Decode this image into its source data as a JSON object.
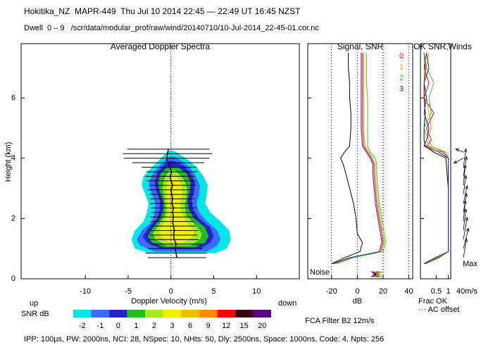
{
  "header": {
    "station": "Hokitika_NZ  MAPR-449  Thu Jul 10 2014 22:45 — 22:49 UT 16:45 NZST",
    "file": "Dwell  0 – 9   /scr/data/modular_prof/raw/wind/20140710/10-Jul-2014_22-45-01.cor.nc"
  },
  "footer": "IPP: 100µs, PW: 2000ns, NCI: 28, NSpec: 10, NHts: 50, Dly: 2500ns, Space: 1000ns, Code: 4, Npts: 256",
  "chart_data": [
    {
      "type": "spectra",
      "title": "Averaged Doppler Spectra",
      "xlabel": "Doppler Velocity (m/s)",
      "ylabel": "Height (km)",
      "left_label": "up",
      "right_label": "down",
      "xlim": [
        -17.5,
        15
      ],
      "xticks": [
        -10,
        -5,
        0,
        5,
        10
      ],
      "ylim": [
        0,
        7.8
      ],
      "yticks": [
        0,
        2,
        4,
        6
      ],
      "colorbar": {
        "label": "SNR dB",
        "levels": [
          -2,
          -1,
          0,
          1,
          2,
          3,
          6,
          9,
          12,
          15,
          20
        ],
        "colors": [
          "#00e5e5",
          "#3d6bff",
          "#2424c8",
          "#1fbf1f",
          "#a8e61e",
          "#f0f000",
          "#f0c000",
          "#ff8c00",
          "#ff0000",
          "#3b0010",
          "#5a0080"
        ]
      },
      "contours": [
        {
          "heights": [
            0.85,
            1.0,
            1.3,
            1.6,
            1.9,
            2.2,
            2.5,
            2.8,
            3.1,
            3.4,
            3.7,
            3.9,
            4.1,
            4.25
          ],
          "left": [
            -2.5,
            -4.2,
            -4.6,
            -4.2,
            -3.2,
            -2.8,
            -2.6,
            -3.0,
            -3.4,
            -3.2,
            -2.2,
            -1.5,
            -0.8,
            -0.2
          ],
          "right": [
            5.2,
            6.5,
            7.0,
            6.8,
            5.8,
            4.6,
            4.0,
            4.2,
            4.3,
            3.8,
            3.0,
            2.2,
            1.2,
            0.3
          ]
        },
        {
          "heights": [
            0.9,
            1.1,
            1.3,
            1.6,
            1.9,
            2.2,
            2.5,
            2.8,
            3.1,
            3.4,
            3.7,
            3.9,
            4.05
          ],
          "left": [
            -1.8,
            -3.6,
            -4.0,
            -3.4,
            -2.2,
            -1.9,
            -1.8,
            -2.2,
            -2.6,
            -2.3,
            -1.5,
            -0.8,
            -0.2
          ],
          "right": [
            4.2,
            5.4,
            5.8,
            5.4,
            4.2,
            3.3,
            3.0,
            3.3,
            3.4,
            2.9,
            2.2,
            1.3,
            0.4
          ]
        },
        {
          "heights": [
            1.0,
            1.2,
            1.4,
            1.7,
            2.0,
            2.3,
            2.6,
            2.9,
            3.2,
            3.5,
            3.75,
            3.9
          ],
          "left": [
            -1.2,
            -2.8,
            -3.3,
            -2.6,
            -1.6,
            -1.3,
            -1.3,
            -1.7,
            -1.9,
            -1.6,
            -0.9,
            -0.2
          ],
          "right": [
            3.4,
            4.6,
            5.0,
            4.6,
            3.3,
            2.6,
            2.4,
            2.7,
            2.8,
            2.3,
            1.5,
            0.4
          ]
        },
        {
          "heights": [
            1.05,
            1.2,
            1.4,
            1.7,
            2.0,
            2.3,
            2.6,
            2.9,
            3.2,
            3.5,
            3.7
          ],
          "left": [
            -0.8,
            -2.2,
            -2.7,
            -2.1,
            -1.2,
            -0.9,
            -0.9,
            -1.3,
            -1.5,
            -1.2,
            -0.4
          ],
          "right": [
            2.8,
            4.0,
            4.4,
            4.0,
            2.7,
            2.1,
            1.9,
            2.2,
            2.3,
            1.8,
            0.8
          ]
        },
        {
          "heights": [
            1.1,
            1.3,
            1.5,
            1.8,
            2.1,
            2.4,
            2.7,
            3.0,
            3.3,
            3.6
          ],
          "left": [
            -0.5,
            -1.8,
            -2.1,
            -1.4,
            -0.7,
            -0.6,
            -0.8,
            -1.0,
            -0.8,
            -0.2
          ],
          "right": [
            2.2,
            3.4,
            3.6,
            2.8,
            1.8,
            1.6,
            1.8,
            1.9,
            1.5,
            0.5
          ]
        },
        {
          "heights": [
            1.2,
            1.4,
            1.6,
            1.9,
            2.2,
            2.5,
            2.8,
            3.1,
            3.4
          ],
          "left": [
            -0.2,
            -1.2,
            -1.4,
            -0.7,
            -0.3,
            -0.4,
            -0.5,
            -0.5,
            -0.1
          ],
          "right": [
            1.5,
            2.6,
            2.7,
            1.8,
            1.2,
            1.1,
            1.3,
            1.3,
            0.6
          ]
        }
      ],
      "bars": {
        "color": "#000000",
        "heights": [
          0.7,
          0.85,
          1.0,
          1.15,
          1.3,
          1.45,
          1.6,
          1.75,
          1.9,
          2.05,
          2.2,
          2.35,
          2.5,
          2.65,
          2.8,
          2.95,
          3.1,
          3.25,
          3.4,
          3.55,
          3.7,
          3.85,
          4.0,
          4.15,
          4.3
        ],
        "velocity": [
          0.7,
          0.6,
          0.5,
          0.6,
          0.4,
          0.3,
          0.4,
          0.3,
          0.2,
          0.3,
          0.2,
          0.3,
          0.1,
          0.2,
          0.1,
          0.0,
          0.2,
          0.0,
          -0.1,
          0.1,
          -0.2,
          -0.3,
          -0.5,
          -0.4,
          -0.3
        ],
        "width": [
          3.4,
          3.6,
          3.2,
          3.0,
          2.9,
          2.8,
          2.8,
          2.6,
          2.6,
          2.7,
          2.5,
          2.6,
          2.5,
          2.6,
          2.6,
          2.7,
          2.7,
          2.8,
          2.9,
          3.0,
          3.2,
          4.2,
          5.0,
          5.2,
          4.8
        ]
      }
    },
    {
      "type": "profile",
      "title": "Signal, SNR",
      "xlabel": "dB",
      "annotation": "Noise",
      "note": "FCA Filter B2 12m/s",
      "xlim": [
        -38.5,
        43
      ],
      "xticks": [
        -20,
        0,
        20,
        40
      ],
      "grid": true,
      "heights": [
        0.5,
        0.7,
        0.9,
        1.2,
        1.5,
        2.0,
        2.5,
        3.0,
        3.5,
        3.8,
        4.0,
        4.2,
        4.4,
        5.0,
        5.5,
        6.0,
        6.5,
        7.0,
        7.5
      ],
      "series": [
        {
          "color": "#000000",
          "noise": 14,
          "values": [
            -20,
            -10,
            2,
            4,
            0,
            -1,
            -3,
            -6,
            -9,
            -11,
            -13,
            -10,
            -6,
            -5,
            -5,
            -6,
            -6,
            -7,
            -7
          ]
        },
        {
          "name": "0",
          "color": "#ff0000",
          "noise": 15,
          "values": [
            -18,
            -5,
            18,
            20,
            19,
            17,
            15,
            14,
            13,
            13,
            11,
            8,
            5,
            4,
            4,
            4,
            4,
            4,
            4
          ]
        },
        {
          "name": "1",
          "color": "#ff9900",
          "noise": 16,
          "values": [
            -17,
            -4,
            19,
            21,
            20,
            18,
            16,
            15,
            14,
            14,
            12,
            9,
            6,
            5,
            5,
            5,
            5,
            5,
            5
          ]
        },
        {
          "name": "2",
          "color": "#33cc33",
          "noise": 17,
          "values": [
            -16,
            -3,
            20,
            22,
            21,
            19,
            17,
            16,
            15,
            15,
            14,
            10,
            8,
            8,
            8,
            8,
            7,
            7,
            7
          ]
        },
        {
          "name": "3",
          "color": "#2020c0",
          "noise": 13,
          "values": [
            -19,
            -6,
            17,
            19,
            18,
            16,
            14,
            13,
            12,
            12,
            10,
            7,
            4,
            3,
            3,
            3,
            3,
            3,
            3
          ]
        }
      ]
    },
    {
      "type": "fraction",
      "title": "OK SNR,Winds",
      "xlabel": "Frac OK",
      "note": "··· AC offset",
      "xlim": [
        -0.15,
        1.1
      ],
      "xticks": [
        0.5,
        1
      ],
      "heights": [
        0.5,
        0.7,
        0.9,
        1.2,
        2.0,
        3.0,
        4.0,
        4.2,
        4.4,
        4.6,
        5.0,
        5.5,
        6.0,
        6.5,
        7.0,
        7.5
      ],
      "series": [
        {
          "color": "#000000",
          "values": [
            0.05,
            0.6,
            1,
            1,
            1,
            1,
            0.9,
            0.4,
            0.05,
            0.0,
            0.0,
            0.05,
            0.0,
            0.0,
            0.05,
            0.0
          ]
        },
        {
          "color": "#ff0000",
          "values": [
            0.0,
            0.5,
            1,
            1,
            1,
            1,
            1,
            0.8,
            0.1,
            0.3,
            0.1,
            0.4,
            0.0,
            0.2,
            0.0,
            0.1
          ]
        },
        {
          "color": "#ff9900",
          "values": [
            0.0,
            0.55,
            1,
            1,
            1,
            1,
            1,
            0.7,
            0.2,
            0.1,
            0.3,
            0.2,
            0.1,
            0.0,
            0.1,
            0.2
          ]
        },
        {
          "color": "#33cc33",
          "values": [
            0.0,
            0.5,
            1,
            1,
            1,
            1,
            1,
            0.9,
            0.3,
            0.2,
            0.0,
            0.3,
            0.2,
            0.4,
            0.1,
            0.0
          ]
        },
        {
          "color": "#2020c0",
          "values": [
            0.0,
            0.45,
            1,
            1,
            1,
            1,
            1,
            0.6,
            0.0,
            0.1,
            0.2,
            0.0,
            0.1,
            0.0,
            0.2,
            0.1
          ]
        }
      ],
      "wind_max": "Max",
      "wind_scale": "40m/s",
      "winds": {
        "heights": [
          0.7,
          1.0,
          1.3,
          1.6,
          1.9,
          2.2,
          2.5,
          2.8,
          3.1,
          3.4,
          3.7,
          4.0,
          4.2
        ],
        "u": [
          5,
          8,
          6,
          4,
          3,
          5,
          6,
          4,
          3,
          5,
          4,
          -15,
          -12
        ],
        "v": [
          30,
          32,
          35,
          34,
          33,
          30,
          28,
          30,
          32,
          31,
          29,
          -8,
          5
        ]
      }
    }
  ]
}
